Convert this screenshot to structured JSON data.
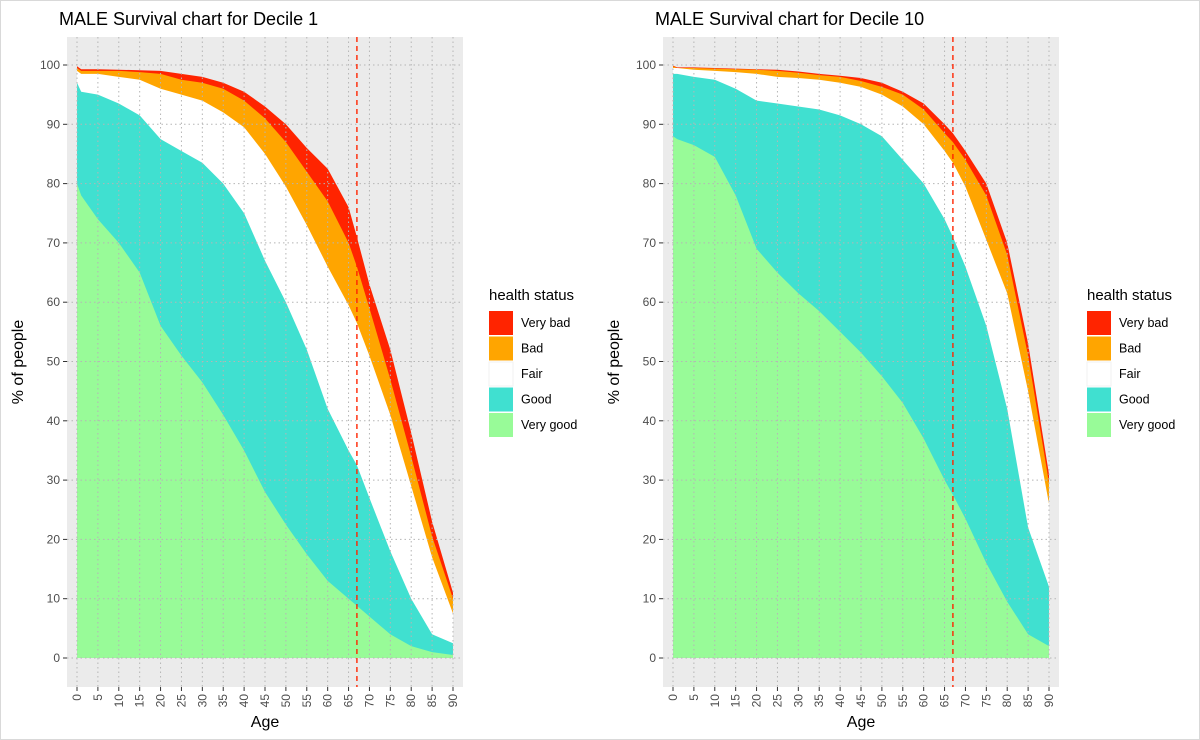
{
  "colors": {
    "very_bad": "#ff2400",
    "bad": "#ffa500",
    "fair": "#ffffff",
    "good": "#40e0d0",
    "very_good": "#98fb98",
    "panel_bg": "#ebebeb",
    "retirement_line": "#ff2400"
  },
  "legend": {
    "title": "health status",
    "items": [
      {
        "label": "Very bad",
        "color_key": "very_bad"
      },
      {
        "label": "Bad",
        "color_key": "bad"
      },
      {
        "label": "Fair",
        "color_key": "fair"
      },
      {
        "label": "Good",
        "color_key": "good"
      },
      {
        "label": "Very good",
        "color_key": "very_good"
      }
    ],
    "placement": "right"
  },
  "chart_data": [
    {
      "type": "area",
      "stacked": true,
      "title": "MALE Survival chart for Decile 1",
      "xlabel": "Age",
      "ylabel": "% of people",
      "xlim": [
        0,
        90
      ],
      "ylim": [
        0,
        100
      ],
      "x_ticks": [
        0,
        5,
        10,
        15,
        20,
        25,
        30,
        35,
        40,
        45,
        50,
        55,
        60,
        65,
        70,
        75,
        80,
        85,
        90
      ],
      "y_ticks": [
        0,
        10,
        20,
        30,
        40,
        50,
        60,
        70,
        80,
        90,
        100
      ],
      "grid": true,
      "vline_x": 67,
      "x": [
        0,
        1,
        5,
        10,
        15,
        20,
        25,
        30,
        35,
        40,
        45,
        50,
        55,
        60,
        65,
        67,
        70,
        75,
        80,
        85,
        90
      ],
      "boundaries": {
        "very_good": [
          80,
          78,
          74,
          70,
          65,
          56,
          51,
          46.5,
          41,
          35,
          28,
          22.5,
          17.5,
          13,
          10,
          8.8,
          7,
          4,
          2,
          1,
          0.5
        ],
        "good": [
          97,
          95.5,
          95,
          93.5,
          91.5,
          87.5,
          85.5,
          83.5,
          80,
          75,
          67,
          60,
          52,
          42,
          35,
          32.5,
          27,
          18,
          10,
          4,
          2.5
        ],
        "fair": [
          99,
          98.5,
          98.5,
          98,
          97.5,
          96,
          95,
          94,
          92,
          89.5,
          85,
          79.5,
          73,
          66,
          59.5,
          56.5,
          51,
          41,
          29,
          17,
          7.5
        ],
        "bad": [
          99.5,
          99,
          99,
          99,
          98.8,
          98.5,
          97.5,
          97,
          96,
          94,
          91,
          87,
          82,
          77,
          70,
          66,
          59,
          47,
          34,
          20.5,
          10
        ],
        "very_bad": [
          99.8,
          99.3,
          99.3,
          99.2,
          99.1,
          99,
          98.5,
          98,
          97,
          95.5,
          93,
          90,
          86,
          82.5,
          76,
          71,
          63,
          52,
          38,
          23,
          11
        ]
      }
    },
    {
      "type": "area",
      "stacked": true,
      "title": "MALE Survival chart for Decile 10",
      "xlabel": "Age",
      "ylabel": "% of people",
      "xlim": [
        0,
        90
      ],
      "ylim": [
        0,
        100
      ],
      "x_ticks": [
        0,
        5,
        10,
        15,
        20,
        25,
        30,
        35,
        40,
        45,
        50,
        55,
        60,
        65,
        70,
        75,
        80,
        85,
        90
      ],
      "y_ticks": [
        0,
        10,
        20,
        30,
        40,
        50,
        60,
        70,
        80,
        90,
        100
      ],
      "grid": true,
      "vline_x": 67,
      "x": [
        0,
        1,
        5,
        10,
        15,
        20,
        25,
        30,
        35,
        40,
        45,
        50,
        55,
        60,
        65,
        67,
        70,
        75,
        80,
        85,
        90
      ],
      "boundaries": {
        "very_good": [
          88,
          87.5,
          86.5,
          84.5,
          78,
          69,
          65,
          61.5,
          58.5,
          55,
          51.5,
          47.5,
          43,
          37,
          30,
          27.5,
          23.5,
          16,
          9.5,
          4,
          2
        ],
        "good": [
          98.5,
          98.5,
          98,
          97.5,
          96,
          94,
          93.5,
          93,
          92.5,
          91.5,
          90,
          88,
          84,
          80,
          74,
          71,
          66,
          56,
          42,
          22,
          12
        ],
        "fair": [
          99.5,
          99.5,
          99.2,
          99,
          98.8,
          98.5,
          98,
          97.8,
          97.5,
          97,
          96.3,
          95,
          93,
          90,
          85.5,
          83.5,
          79.5,
          70.5,
          61.5,
          45,
          26
        ],
        "bad": [
          99.8,
          99.5,
          99.5,
          99.4,
          99.3,
          99.2,
          99,
          98.7,
          98.3,
          98,
          97.3,
          96.3,
          95,
          92.5,
          88.5,
          87,
          84,
          78,
          68,
          51,
          29.5
        ],
        "very_bad": [
          99.9,
          99.6,
          99.6,
          99.5,
          99.4,
          99.3,
          99.2,
          98.9,
          98.5,
          98.2,
          97.8,
          97,
          95.5,
          93.5,
          90,
          88.5,
          85.5,
          80,
          70,
          53,
          31
        ]
      }
    }
  ]
}
